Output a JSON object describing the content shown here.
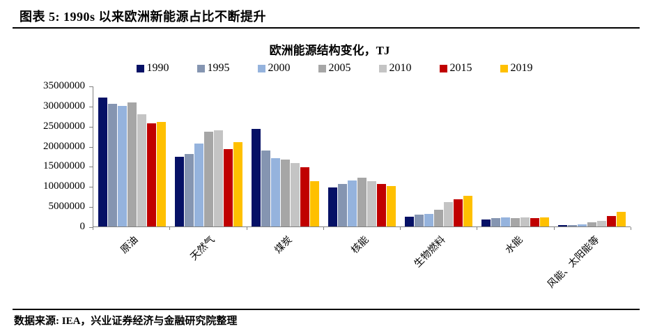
{
  "page": {
    "figure_title": "图表 5: 1990s 以来欧洲新能源占比不断提升",
    "source_note": "数据来源: IEA，兴业证券经济与金融研究院整理"
  },
  "chart_data": {
    "type": "bar",
    "title": "欧洲能源结构变化，TJ",
    "xlabel": "",
    "ylabel": "",
    "categories": [
      "原油",
      "天然气",
      "煤炭",
      "核能",
      "生物燃料",
      "水能",
      "风能、太阳能等"
    ],
    "series": [
      {
        "name": "1990",
        "color": "#061166",
        "values": [
          32000000,
          17300000,
          24200000,
          9700000,
          2500000,
          1800000,
          300000
        ]
      },
      {
        "name": "1995",
        "color": "#8595b1",
        "values": [
          30500000,
          18000000,
          18800000,
          10500000,
          2900000,
          2000000,
          350000
        ]
      },
      {
        "name": "2000",
        "color": "#95b3dd",
        "values": [
          30000000,
          20700000,
          16900000,
          11400000,
          3200000,
          2200000,
          550000
        ]
      },
      {
        "name": "2005",
        "color": "#a6a6a6",
        "values": [
          30800000,
          23500000,
          16700000,
          12100000,
          4200000,
          2000000,
          1000000
        ]
      },
      {
        "name": "2010",
        "color": "#c4c4c4",
        "values": [
          27900000,
          23900000,
          15700000,
          11200000,
          6000000,
          2300000,
          1400000
        ]
      },
      {
        "name": "2015",
        "color": "#c00000",
        "values": [
          25600000,
          19200000,
          14700000,
          10500000,
          6800000,
          2100000,
          2600000
        ]
      },
      {
        "name": "2019",
        "color": "#ffc000",
        "values": [
          26000000,
          21000000,
          11200000,
          10100000,
          7600000,
          2200000,
          3600000
        ]
      }
    ],
    "ylim": [
      0,
      35000000
    ],
    "ytick_interval": 5000000,
    "ytick_labels": [
      "0",
      "5000000",
      "10000000",
      "15000000",
      "20000000",
      "25000000",
      "30000000",
      "35000000"
    ],
    "grid": false,
    "legend_position": "top",
    "axis_color": "#808080"
  }
}
